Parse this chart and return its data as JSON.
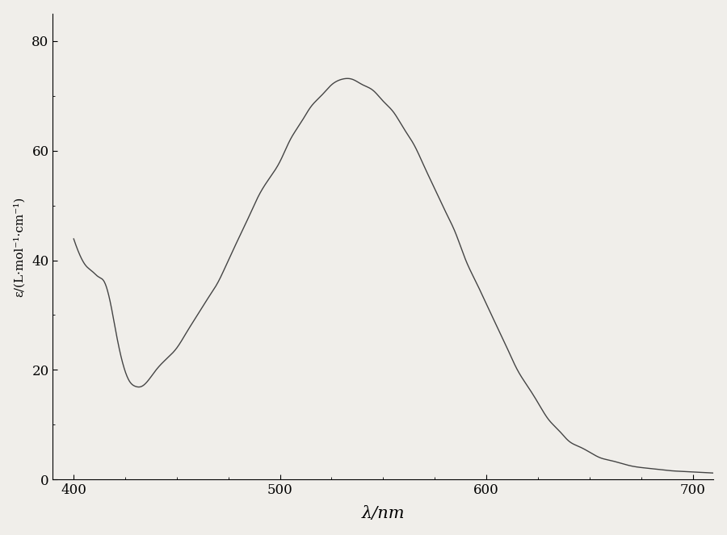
{
  "title": "",
  "xlabel": "λ/nm",
  "ylabel": "ε/(L·mol⁻¹·cm⁻¹)",
  "xlim": [
    390,
    710
  ],
  "ylim": [
    0,
    85
  ],
  "xticks": [
    400,
    500,
    600,
    700
  ],
  "yticks": [
    0,
    20,
    40,
    60,
    80
  ],
  "line_color": "#444444",
  "background_color": "#f0eeea",
  "curve_x": [
    390,
    395,
    400,
    403,
    406,
    409,
    412,
    415,
    418,
    421,
    424,
    427,
    430,
    433,
    436,
    440,
    445,
    450,
    455,
    460,
    465,
    470,
    475,
    480,
    485,
    490,
    495,
    500,
    505,
    510,
    515,
    520,
    525,
    530,
    535,
    540,
    545,
    550,
    555,
    560,
    565,
    570,
    575,
    580,
    585,
    590,
    595,
    600,
    605,
    610,
    615,
    620,
    625,
    630,
    635,
    640,
    645,
    650,
    655,
    660,
    665,
    670,
    675,
    680,
    685,
    690,
    695,
    700,
    705,
    710
  ],
  "curve_y": [
    55,
    50,
    44,
    41,
    39,
    38,
    37,
    36,
    32,
    26,
    21,
    18,
    17,
    17,
    18,
    20,
    22,
    24,
    27,
    30,
    33,
    36,
    40,
    44,
    48,
    52,
    55,
    58,
    62,
    65,
    68,
    70,
    72,
    73,
    73,
    72,
    71,
    69,
    67,
    64,
    61,
    57,
    53,
    49,
    45,
    40,
    36,
    32,
    28,
    24,
    20,
    17,
    14,
    11,
    9,
    7,
    6,
    5,
    4,
    3.5,
    3,
    2.5,
    2.2,
    2,
    1.8,
    1.6,
    1.5,
    1.4,
    1.3,
    1.2
  ]
}
